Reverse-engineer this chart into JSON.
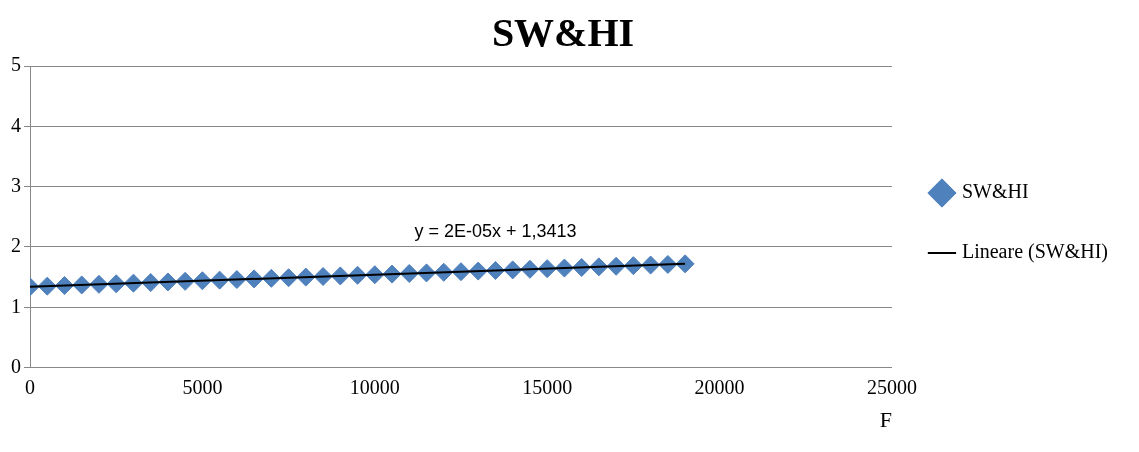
{
  "chart_data": {
    "type": "scatter",
    "title": "SW&HI",
    "xlabel": "F",
    "xlim": [
      0,
      25000
    ],
    "xticks": [
      0,
      5000,
      10000,
      15000,
      20000,
      25000
    ],
    "ylim": [
      0,
      5
    ],
    "yticks": [
      0,
      1,
      2,
      3,
      4,
      5
    ],
    "grid": "y",
    "legend": "right",
    "series": [
      {
        "name": "SW&HI",
        "type": "scatter",
        "marker": "diamond",
        "color": "#4f81bd",
        "x": [
          0,
          500,
          1000,
          1500,
          2000,
          2500,
          3000,
          3500,
          4000,
          4500,
          5000,
          5500,
          6000,
          6500,
          7000,
          7500,
          8000,
          8500,
          9000,
          9500,
          10000,
          10500,
          11000,
          11500,
          12000,
          12500,
          13000,
          13500,
          14000,
          14500,
          15000,
          15500,
          16000,
          16500,
          17000,
          17500,
          18000,
          18500,
          19000
        ],
        "values": [
          1.34,
          1.35,
          1.36,
          1.37,
          1.38,
          1.39,
          1.4,
          1.41,
          1.42,
          1.43,
          1.44,
          1.45,
          1.46,
          1.47,
          1.48,
          1.49,
          1.5,
          1.51,
          1.52,
          1.53,
          1.54,
          1.55,
          1.56,
          1.57,
          1.58,
          1.59,
          1.6,
          1.61,
          1.62,
          1.63,
          1.64,
          1.65,
          1.66,
          1.67,
          1.68,
          1.69,
          1.7,
          1.71,
          1.72
        ]
      },
      {
        "name": "Lineare (SW&HI)",
        "type": "line",
        "color": "#000000",
        "x": [
          0,
          19000
        ],
        "values": [
          1.34,
          1.72
        ]
      }
    ],
    "annotations": [
      "y = 2E-05x + 1,3413"
    ]
  }
}
